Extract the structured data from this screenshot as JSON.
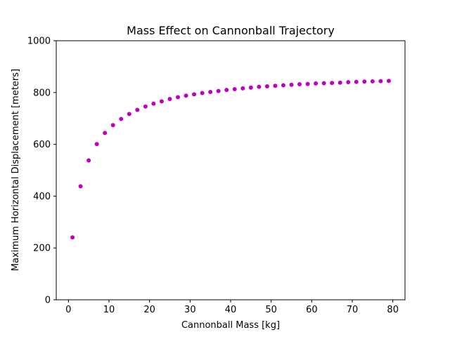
{
  "chart_data": {
    "type": "scatter",
    "title": "Mass Effect on Cannonball Trajectory",
    "xlabel": "Cannonball Mass [kg]",
    "ylabel": "Maximum Horizontal Displacement [meters]",
    "xlim": [
      -3,
      83
    ],
    "ylim": [
      0,
      1000
    ],
    "xticks": [
      0,
      10,
      20,
      30,
      40,
      50,
      60,
      70,
      80
    ],
    "yticks": [
      0,
      200,
      400,
      600,
      800,
      1000
    ],
    "grid": false,
    "marker_color": "#bf00bf",
    "series": [
      {
        "x": [
          1,
          3,
          5,
          7,
          9,
          11,
          13,
          15,
          17,
          19,
          21,
          23,
          25,
          27,
          29,
          31,
          33,
          35,
          37,
          39,
          41,
          43,
          45,
          47,
          49,
          51,
          53,
          55,
          57,
          59,
          61,
          63,
          65,
          67,
          69,
          71,
          73,
          75,
          77,
          79
        ],
        "y": [
          241,
          438,
          538,
          601,
          644,
          674,
          698,
          717,
          733,
          746,
          757,
          766,
          775,
          782,
          788,
          793,
          798,
          802,
          806,
          810,
          813,
          816,
          819,
          822,
          824,
          826,
          828,
          830,
          832,
          833,
          835,
          836,
          837,
          838,
          840,
          841,
          842,
          843,
          844,
          845
        ]
      }
    ]
  }
}
